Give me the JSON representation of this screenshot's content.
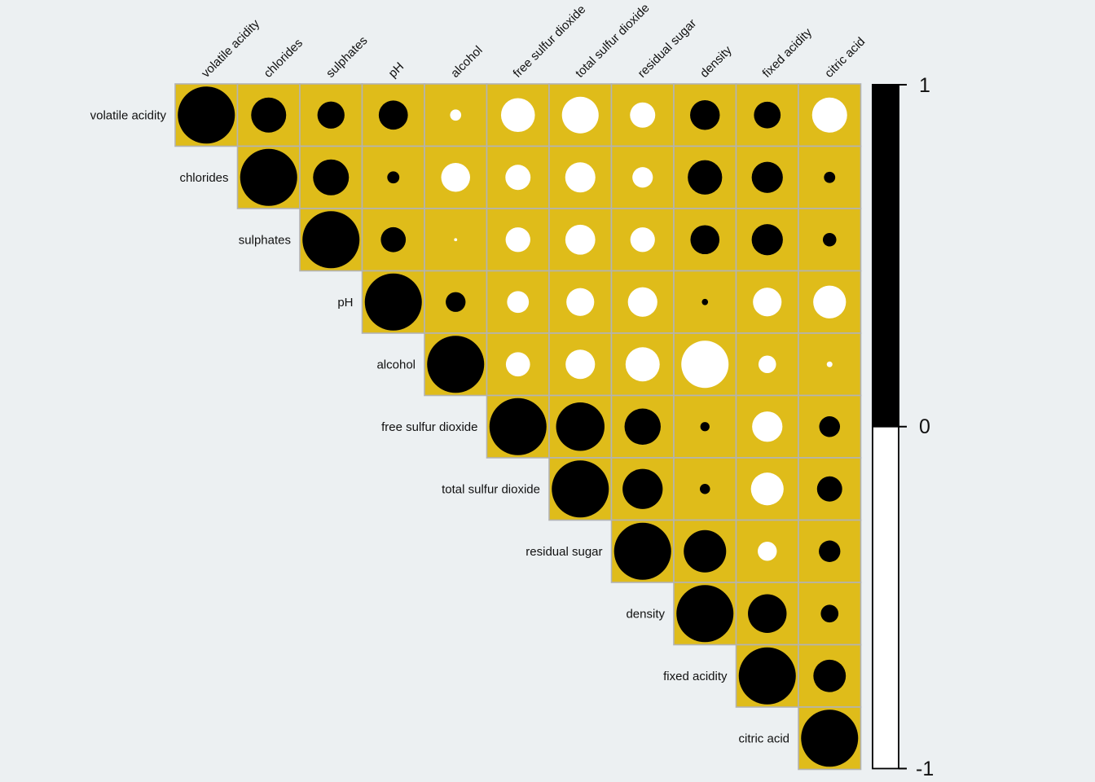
{
  "page": {
    "background_color": "#ecf0f2",
    "description": "Correlation matrix plot (upper triangle) of wine quality physicochemical variables with circle-size/color encoding and a 1 to -1 colorbar"
  },
  "chart_data": {
    "type": "heatmap",
    "subtype": "correlogram-upper-triangle-circles",
    "title": "",
    "variables": [
      "volatile acidity",
      "chlorides",
      "sulphates",
      "pH",
      "alcohol",
      "free sulfur dioxide",
      "total sulfur dioxide",
      "residual sugar",
      "density",
      "fixed acidity",
      "citric acid"
    ],
    "upper_triangle_rows": [
      {
        "name": "volatile acidity",
        "values": [
          1,
          0.377,
          0.226,
          0.261,
          -0.038,
          -0.353,
          -0.414,
          -0.196,
          0.271,
          0.219,
          -0.378
        ]
      },
      {
        "name": "chlorides",
        "values": [
          1,
          0.395,
          0.045,
          -0.257,
          -0.195,
          -0.28,
          -0.129,
          0.363,
          0.298,
          0.039
        ]
      },
      {
        "name": "sulphates",
        "values": [
          1,
          0.192,
          -0.003,
          -0.188,
          -0.276,
          -0.186,
          0.259,
          0.299,
          0.056
        ]
      },
      {
        "name": "pH",
        "values": [
          1,
          0.121,
          -0.146,
          -0.238,
          -0.267,
          0.012,
          -0.252,
          -0.33
        ]
      },
      {
        "name": "alcohol",
        "values": [
          1,
          -0.18,
          -0.266,
          -0.359,
          -0.687,
          -0.095,
          -0.01
        ]
      },
      {
        "name": "free sulfur dioxide",
        "values": [
          1,
          0.721,
          0.403,
          0.026,
          -0.283,
          0.133
        ]
      },
      {
        "name": "total sulfur dioxide",
        "values": [
          1,
          0.495,
          0.032,
          -0.329,
          0.195
        ]
      },
      {
        "name": "residual sugar",
        "values": [
          1,
          0.553,
          -0.112,
          0.142
        ]
      },
      {
        "name": "density",
        "values": [
          1,
          0.459,
          0.096
        ]
      },
      {
        "name": "fixed acidity",
        "values": [
          1,
          0.324
        ]
      },
      {
        "name": "citric acid",
        "values": [
          1
        ]
      }
    ],
    "encoding": {
      "circle_area": "proportional to |correlation|",
      "positive_color": "#000000",
      "negative_color": "#ffffff"
    },
    "cell_background": "#dfbc1a",
    "grid_line_color": "#b3b3b3",
    "legend_position": "right",
    "colorbar": {
      "ticks": [
        "1",
        "0",
        "-1"
      ],
      "top_color": "#000000",
      "bottom_color": "#ffffff",
      "range": [
        1,
        -1
      ]
    }
  }
}
